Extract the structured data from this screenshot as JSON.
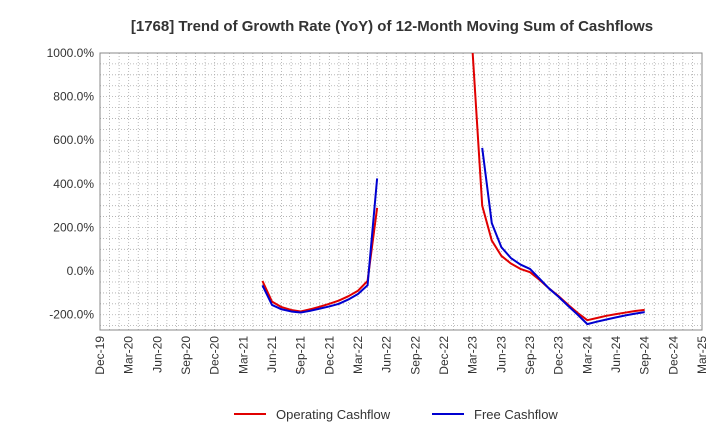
{
  "chart_data": {
    "type": "line",
    "title": "[1768]  Trend of Growth Rate (YoY) of 12-Month Moving Sum of Cashflows",
    "xlabel": "",
    "ylabel": "",
    "ylim": [
      -270,
      1000
    ],
    "y_ticks": [
      {
        "value": 1000,
        "label": "1000.0%"
      },
      {
        "value": 800,
        "label": "800.0%"
      },
      {
        "value": 600,
        "label": "600.0%"
      },
      {
        "value": 400,
        "label": "400.0%"
      },
      {
        "value": 200,
        "label": "200.0%"
      },
      {
        "value": 0,
        "label": "0.0%"
      },
      {
        "value": -200,
        "label": "-200.0%"
      }
    ],
    "x_range": [
      "2019-12",
      "2025-03"
    ],
    "x_ticks": [
      "Dec-19",
      "Mar-20",
      "Jun-20",
      "Sep-20",
      "Dec-20",
      "Mar-21",
      "Jun-21",
      "Sep-21",
      "Dec-21",
      "Mar-22",
      "Jun-22",
      "Sep-22",
      "Dec-22",
      "Mar-23",
      "Jun-23",
      "Sep-23",
      "Dec-23",
      "Mar-24",
      "Jun-24",
      "Sep-24",
      "Dec-24",
      "Mar-25"
    ],
    "grid": true,
    "legend_position": "bottom",
    "series": [
      {
        "name": "Operating Cashflow",
        "color": "#e00000",
        "points": [
          [
            "2021-05",
            -45
          ],
          [
            "2021-06",
            -140
          ],
          [
            "2021-07",
            -165
          ],
          [
            "2021-08",
            -178
          ],
          [
            "2021-09",
            -185
          ],
          [
            "2021-10",
            -175
          ],
          [
            "2021-11",
            -163
          ],
          [
            "2021-12",
            -150
          ],
          [
            "2022-01",
            -135
          ],
          [
            "2022-02",
            -115
          ],
          [
            "2022-03",
            -90
          ],
          [
            "2022-04",
            -45
          ],
          [
            "2022-05",
            290
          ],
          [
            "2023-03",
            1000
          ],
          [
            "2023-04",
            300
          ],
          [
            "2023-05",
            140
          ],
          [
            "2023-06",
            70
          ],
          [
            "2023-07",
            35
          ],
          [
            "2023-08",
            10
          ],
          [
            "2023-09",
            -5
          ],
          [
            "2023-10",
            -40
          ],
          [
            "2023-11",
            -80
          ],
          [
            "2023-12",
            -115
          ],
          [
            "2024-01",
            -155
          ],
          [
            "2024-02",
            -192
          ],
          [
            "2024-03",
            -225
          ],
          [
            "2024-04",
            -215
          ],
          [
            "2024-05",
            -205
          ],
          [
            "2024-06",
            -197
          ],
          [
            "2024-07",
            -190
          ],
          [
            "2024-08",
            -183
          ],
          [
            "2024-09",
            -178
          ]
        ]
      },
      {
        "name": "Free Cashflow",
        "color": "#0000d0",
        "points": [
          [
            "2021-05",
            -65
          ],
          [
            "2021-06",
            -155
          ],
          [
            "2021-07",
            -175
          ],
          [
            "2021-08",
            -185
          ],
          [
            "2021-09",
            -190
          ],
          [
            "2021-10",
            -182
          ],
          [
            "2021-11",
            -172
          ],
          [
            "2021-12",
            -162
          ],
          [
            "2022-01",
            -150
          ],
          [
            "2022-02",
            -130
          ],
          [
            "2022-03",
            -105
          ],
          [
            "2022-04",
            -65
          ],
          [
            "2022-05",
            425
          ],
          [
            "2023-04",
            565
          ],
          [
            "2023-05",
            220
          ],
          [
            "2023-06",
            110
          ],
          [
            "2023-07",
            60
          ],
          [
            "2023-08",
            30
          ],
          [
            "2023-09",
            10
          ],
          [
            "2023-10",
            -35
          ],
          [
            "2023-11",
            -80
          ],
          [
            "2023-12",
            -118
          ],
          [
            "2024-01",
            -160
          ],
          [
            "2024-02",
            -200
          ],
          [
            "2024-03",
            -243
          ],
          [
            "2024-04",
            -232
          ],
          [
            "2024-05",
            -222
          ],
          [
            "2024-06",
            -212
          ],
          [
            "2024-07",
            -203
          ],
          [
            "2024-08",
            -195
          ],
          [
            "2024-09",
            -188
          ]
        ]
      }
    ]
  }
}
